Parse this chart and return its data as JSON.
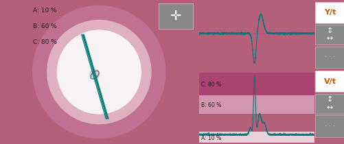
{
  "bg_color": "#b5607a",
  "labels_left": [
    "A: 10 %",
    "B: 60 %",
    "C: 80 %"
  ],
  "label_color": "#1a1a1a",
  "ellipse_outer_color": "#c07090",
  "ellipse_ring_color": "#deb0c0",
  "ellipse_white_color": "#f8f4f5",
  "plot_bg": "#ffffff",
  "teal_color": "#007878",
  "button_color": "#888888",
  "button_border": "#aaaaaa",
  "yt_label": "Y/t",
  "vt_label": "V/t",
  "band_c_color": "#a84070",
  "band_b_color": "#d8a0b8",
  "band_a_color": "#f0dde5",
  "band_c_label": "C: 80 %",
  "band_b_label": "B: 60 %",
  "band_a_label": "A: 10 %",
  "yt_label_color": "#cc5500",
  "vt_label_color": "#cc5500"
}
